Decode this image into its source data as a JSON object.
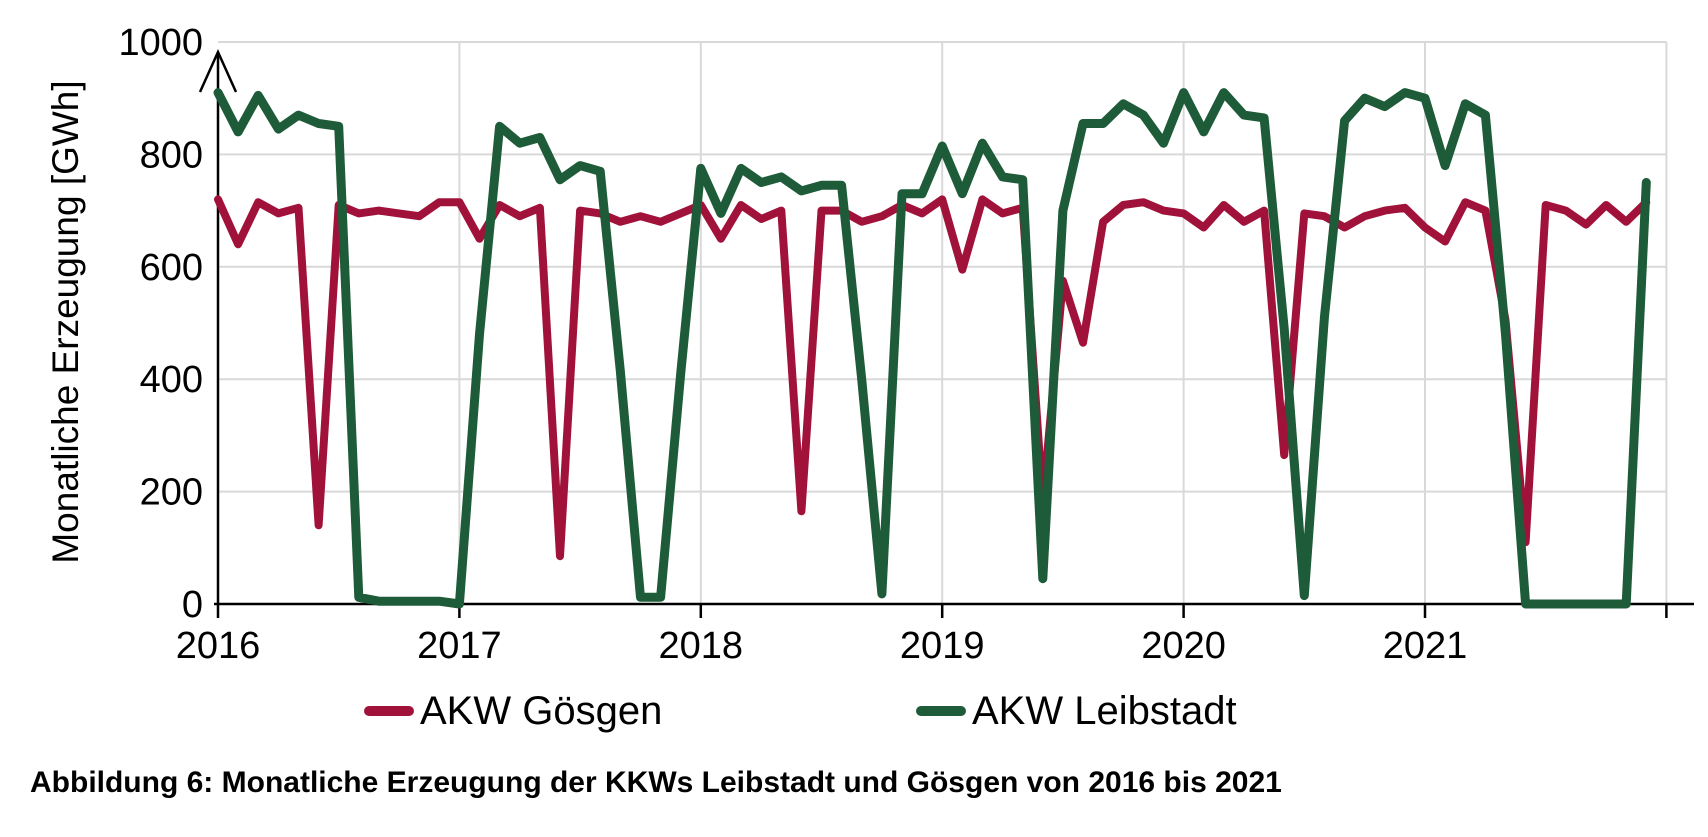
{
  "caption": "Abbildung 6: Monatliche Erzeugung der KKWs Leibstadt und Gösgen von 2016 bis 2021",
  "chart_data": {
    "type": "line",
    "title": "",
    "xlabel": "",
    "ylabel": "Monatliche Erzeugung [GWh]",
    "ylim": [
      0,
      1000
    ],
    "yticks": [
      0,
      200,
      400,
      600,
      800,
      1000
    ],
    "year_labels": [
      "2016",
      "2017",
      "2018",
      "2019",
      "2020",
      "2021"
    ],
    "x_start": "2016-01",
    "x_step_months": 1,
    "n_points": 72,
    "grid": "horizontal gridlines at 200-GWh steps, vertical gridlines at year boundaries",
    "legend_position": "bottom",
    "axis_color": "#000000",
    "gridline_color": "#D9D9D9",
    "series": [
      {
        "name": "AKW Gösgen",
        "color": "#A1123B",
        "values": [
          720,
          640,
          715,
          695,
          705,
          140,
          710,
          695,
          700,
          695,
          690,
          715,
          715,
          650,
          710,
          690,
          705,
          85,
          700,
          695,
          680,
          690,
          680,
          695,
          710,
          650,
          710,
          685,
          700,
          165,
          700,
          700,
          680,
          690,
          710,
          695,
          720,
          595,
          720,
          695,
          705,
          180,
          575,
          465,
          680,
          710,
          715,
          700,
          695,
          670,
          710,
          680,
          700,
          265,
          695,
          690,
          670,
          690,
          700,
          705,
          670,
          645,
          715,
          700,
          505,
          110,
          710,
          700,
          675,
          710,
          680,
          715
        ]
      },
      {
        "name": "AKW Leibstadt",
        "color": "#1E5B38",
        "values": [
          910,
          840,
          905,
          845,
          870,
          855,
          850,
          12,
          5,
          5,
          5,
          5,
          0,
          480,
          850,
          820,
          830,
          755,
          780,
          770,
          415,
          12,
          12,
          410,
          775,
          695,
          775,
          750,
          760,
          735,
          745,
          745,
          400,
          18,
          730,
          730,
          815,
          730,
          820,
          760,
          755,
          45,
          700,
          855,
          855,
          890,
          870,
          820,
          910,
          840,
          910,
          870,
          865,
          490,
          15,
          510,
          860,
          900,
          885,
          910,
          900,
          780,
          890,
          870,
          480,
          0,
          0,
          0,
          0,
          0,
          0,
          750
        ]
      }
    ]
  }
}
